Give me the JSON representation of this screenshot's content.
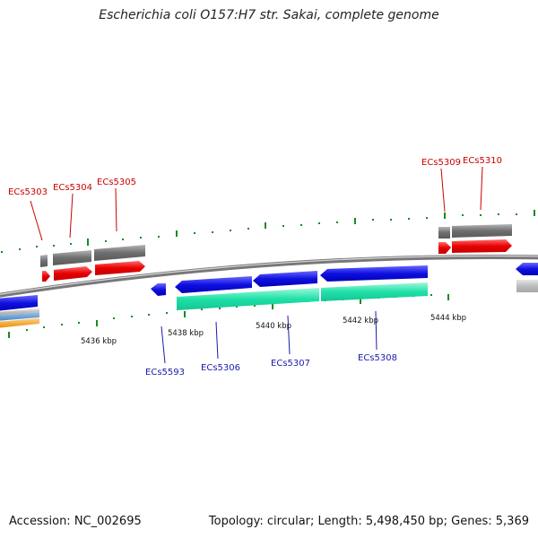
{
  "title": "Escherichia coli O157:H7 str. Sakai, complete genome",
  "accession": "Accession: NC_002695",
  "summary": "Topology: circular; Length: 5,498,450 bp; Genes: 5,369",
  "colors": {
    "forward_cds": "#e60000",
    "reverse_cds": "#1010e0",
    "gene": "#777777",
    "reverse_gene": "#1fe0a8",
    "backbone": "#8a8a8a",
    "tick": "#1a8a1a",
    "forward_label": "#cc0000",
    "reverse_label": "#1a1aaa"
  },
  "ticks": [
    "5436 kbp",
    "5438 kbp",
    "5440 kbp",
    "5442 kbp",
    "5444 kbp"
  ],
  "forward_genes": [
    "ECs5303",
    "ECs5304",
    "ECs5305",
    "ECs5309",
    "ECs5310"
  ],
  "reverse_genes": [
    "ECs5593",
    "ECs5306",
    "ECs5307",
    "ECs5308"
  ]
}
